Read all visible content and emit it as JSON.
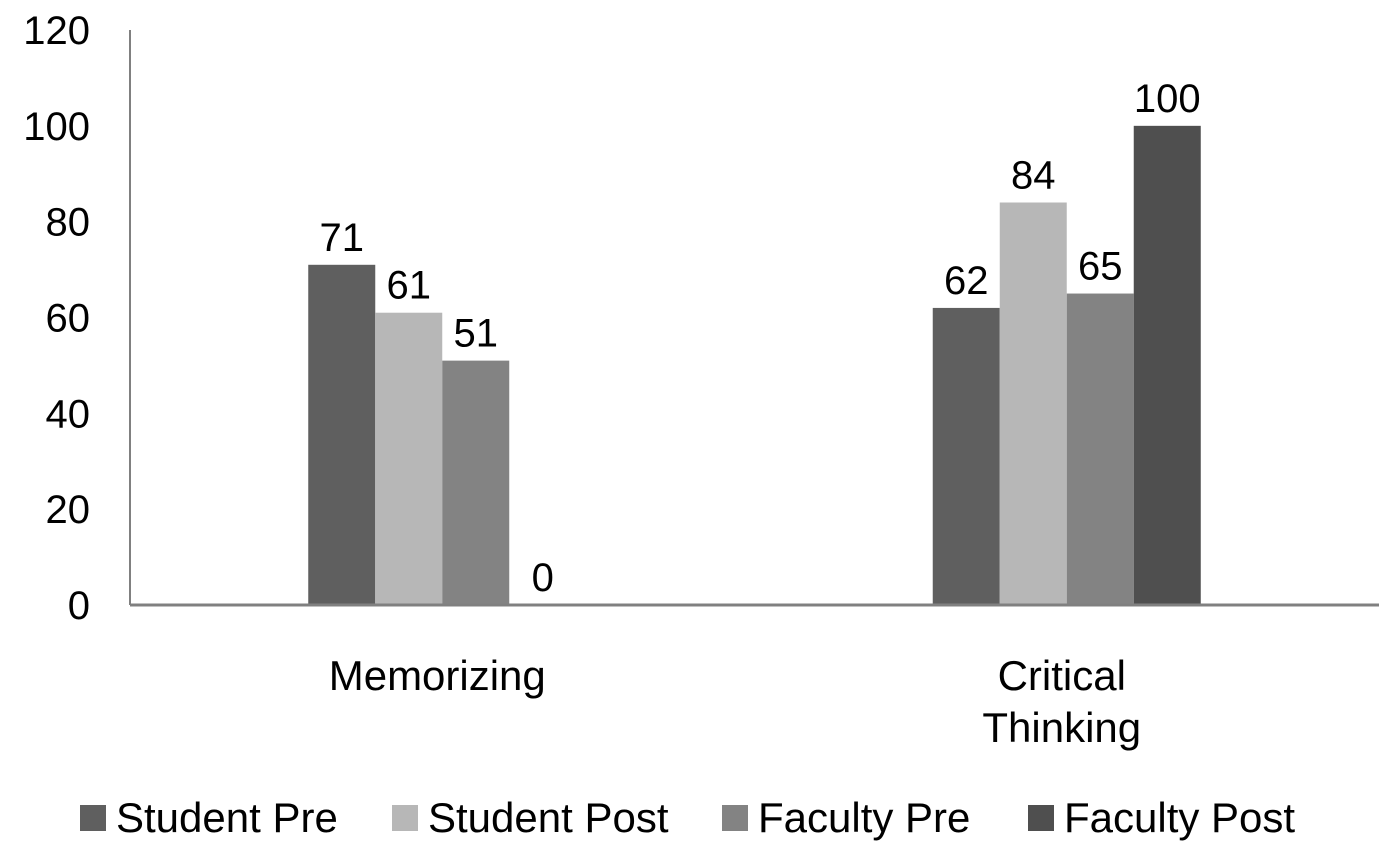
{
  "chart_data": {
    "type": "bar",
    "categories": [
      [
        "Memorizing"
      ],
      [
        "Critical",
        "Thinking"
      ]
    ],
    "series": [
      {
        "name": "Student Pre",
        "values": [
          71,
          62
        ],
        "color": "#5f5f5f"
      },
      {
        "name": "Student Post",
        "values": [
          61,
          84
        ],
        "color": "#b7b7b7"
      },
      {
        "name": "Faculty Pre",
        "values": [
          51,
          65
        ],
        "color": "#838383"
      },
      {
        "name": "Faculty Post",
        "values": [
          0,
          100
        ],
        "color": "#4f4f4f"
      }
    ],
    "ylim": [
      0,
      120
    ],
    "yticks": [
      0,
      20,
      40,
      60,
      80,
      100,
      120
    ],
    "grid": false,
    "legend": "bottom",
    "axis_color": "#808080"
  }
}
